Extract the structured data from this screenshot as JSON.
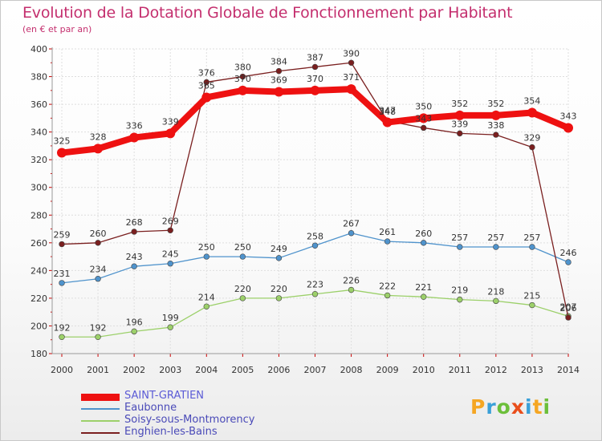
{
  "title": "Evolution de la Dotation Globale de Fonctionnement par Habitant",
  "subtitle": "(en € et par an)",
  "logo": {
    "text": "Proxiti",
    "colors": [
      "#f5a623",
      "#3aa0d8",
      "#6cbf3a",
      "#e94e1b",
      "#3aa0d8",
      "#f5a623",
      "#6cbf3a"
    ]
  },
  "chart_data": {
    "type": "line",
    "title": "Evolution de la Dotation Globale de Fonctionnement par Habitant",
    "subtitle": "(en € et par an)",
    "xlabel": "",
    "ylabel": "",
    "x": [
      "2000",
      "2001",
      "2002",
      "2003",
      "2004",
      "2005",
      "2006",
      "2007",
      "2008",
      "2009",
      "2010",
      "2011",
      "2012",
      "2013",
      "2014"
    ],
    "ylim": [
      180,
      400
    ],
    "yticks": [
      180,
      200,
      220,
      240,
      260,
      280,
      300,
      320,
      340,
      360,
      380,
      400
    ],
    "grid": true,
    "legend": "bottom-left",
    "series": [
      {
        "name": "SAINT-GRATIEN",
        "color": "#ee1111",
        "values": [
          325,
          328,
          336,
          339,
          365,
          370,
          369,
          370,
          371,
          347,
          350,
          352,
          352,
          354,
          343
        ],
        "labels": [
          "325",
          "328",
          "336",
          "339",
          "365",
          "370",
          "369",
          "370",
          "371",
          "347",
          "350",
          "352",
          "352",
          "354",
          "343"
        ]
      },
      {
        "name": "Eaubonne",
        "color": "#4f93cc",
        "values": [
          231,
          234,
          243,
          245,
          250,
          250,
          249,
          258,
          267,
          261,
          260,
          257,
          257,
          257,
          246
        ],
        "labels": [
          "231",
          "234",
          "243",
          "245",
          "250",
          "250",
          "249",
          "258",
          "267",
          "261",
          "260",
          "257",
          "257",
          "257",
          "246"
        ]
      },
      {
        "name": "Soisy-sous-Montmorency",
        "color": "#9cd06a",
        "values": [
          192,
          192,
          196,
          199,
          214,
          220,
          220,
          223,
          226,
          222,
          221,
          219,
          218,
          215,
          207
        ],
        "labels": [
          "192",
          "192",
          "196",
          "199",
          "214",
          "220",
          "220",
          "223",
          "226",
          "222",
          "221",
          "219",
          "218",
          "215",
          "207"
        ]
      },
      {
        "name": "Enghien-les-Bains",
        "color": "#7a1f1f",
        "values": [
          259,
          260,
          268,
          269,
          376,
          380,
          384,
          387,
          390,
          348,
          343,
          339,
          338,
          329,
          206
        ],
        "labels": [
          "259",
          "260",
          "268",
          "269",
          "376",
          "380",
          "384",
          "387",
          "390",
          "348",
          "343",
          "339",
          "338",
          "329",
          "206"
        ]
      }
    ]
  }
}
